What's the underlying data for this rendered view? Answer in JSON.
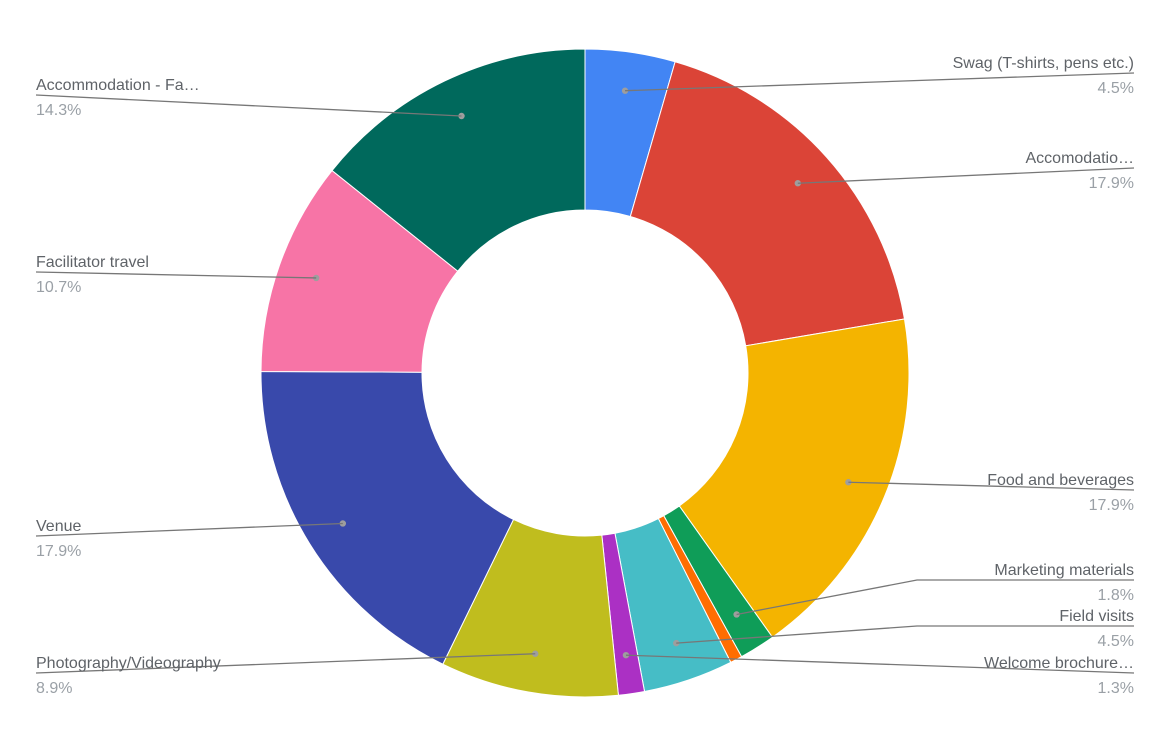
{
  "chart_data": {
    "type": "pie",
    "variant": "donut",
    "slices": [
      {
        "label": "Swag (T-shirts, pens etc.)",
        "value": 4.5,
        "percent_label": "4.5%",
        "color": "#4285f4"
      },
      {
        "label": "Accomodatio…",
        "value": 17.9,
        "percent_label": "17.9%",
        "color": "#db4437"
      },
      {
        "label": "Food and beverages",
        "value": 17.9,
        "percent_label": "17.9%",
        "color": "#f4b400"
      },
      {
        "label": "Marketing materials",
        "value": 1.8,
        "percent_label": "1.8%",
        "color": "#0f9d58"
      },
      {
        "label": "",
        "value": 0.6,
        "percent_label": "",
        "color": "#ff6d01"
      },
      {
        "label": "Field visits",
        "value": 4.5,
        "percent_label": "4.5%",
        "color": "#46bdc6"
      },
      {
        "label": "Welcome brochure…",
        "value": 1.3,
        "percent_label": "1.3%",
        "color": "#ab30c4"
      },
      {
        "label": "Photography/Videography",
        "value": 8.9,
        "percent_label": "8.9%",
        "color": "#c0bd1e"
      },
      {
        "label": "Venue",
        "value": 17.9,
        "percent_label": "17.9%",
        "color": "#3949ab"
      },
      {
        "label": "Facilitator travel",
        "value": 10.7,
        "percent_label": "10.7%",
        "color": "#f774a6"
      },
      {
        "label": "Accommodation - Fa…",
        "value": 14.3,
        "percent_label": "14.3%",
        "color": "#00695c"
      }
    ],
    "legend": "none",
    "labels": "outside-with-leader-lines"
  }
}
